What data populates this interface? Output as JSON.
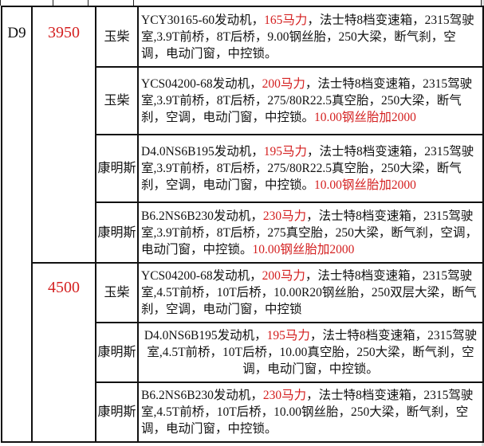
{
  "colors": {
    "highlight": "#d42020",
    "text": "#111111"
  },
  "model": "D9",
  "groups": [
    {
      "price": "3950",
      "rows": [
        {
          "brand": "玉柴",
          "desc": [
            {
              "t": "YCY30165-60发动机，"
            },
            {
              "t": "165马力",
              "red": true
            },
            {
              "t": "，法士特8档变速箱，2315驾驶室,3.9T前桥，8T后桥，9.00钢丝胎，250大梁，断气刹，空调，电动门窗，中控锁。"
            }
          ]
        },
        {
          "brand": "玉柴",
          "desc": [
            {
              "t": "YCS04200-68发动机，"
            },
            {
              "t": "200马力",
              "red": true
            },
            {
              "t": "，法士特8档变速箱，2315驾驶室,3.9T前桥，8T后桥，275/80R22.5真空胎，250大梁，断气刹，空调，电动门窗，中控锁。"
            },
            {
              "t": "10.00钢丝胎加2000",
              "red": true
            }
          ]
        },
        {
          "brand": "康明斯",
          "desc": [
            {
              "t": "D4.0NS6B195发动机，"
            },
            {
              "t": "195马力",
              "red": true
            },
            {
              "t": "，法士特8档变速箱，2315驾驶室,3.9T前桥，8T后桥，275/80R22.5真空胎，250大梁，断气刹，空调，电动门窗，中控锁。"
            },
            {
              "t": "10.00钢丝胎加2000",
              "red": true
            }
          ]
        },
        {
          "brand": "康明斯",
          "desc": [
            {
              "t": "B6.2NS6B230发动机，"
            },
            {
              "t": "230马力",
              "red": true
            },
            {
              "t": "，法士特8档变速箱，2315驾驶室,3.9T前桥，8T后桥，275真空胎，250大梁，断气刹，空调，电动门窗，中控锁。"
            },
            {
              "t": "10.00钢丝胎加2000",
              "red": true
            }
          ]
        }
      ]
    },
    {
      "price": "4500",
      "rows": [
        {
          "brand": "玉柴",
          "desc": [
            {
              "t": "YCS04200-68发动机，"
            },
            {
              "t": "200马力",
              "red": true
            },
            {
              "t": "，法士特8档变速箱，2315驾驶室,4.5T前桥，10T后桥，10.00R20钢丝胎，250双层大梁，断气刹，空调，电动门窗，中控锁"
            }
          ]
        },
        {
          "brand": "康明斯",
          "center": true,
          "desc": [
            {
              "t": "D4.0NS6B195发动机，"
            },
            {
              "t": "195马力",
              "red": true
            },
            {
              "t": "，法士特8档变速箱，2315驾驶室,4.5T前桥，10T后桥，10.00真空胎，250大梁，断气刹，空调，电动门窗，中控锁。"
            }
          ]
        },
        {
          "brand": "康明斯",
          "desc": [
            {
              "t": "B6.2NS6B230发动机，"
            },
            {
              "t": "230马力",
              "red": true
            },
            {
              "t": "，法士特8档变速箱，2315驾驶室,4.5T前桥，10T后桥，10.00钢丝胎，250大梁，断气刹，空调，电动门窗，中控锁。"
            }
          ]
        }
      ]
    }
  ]
}
